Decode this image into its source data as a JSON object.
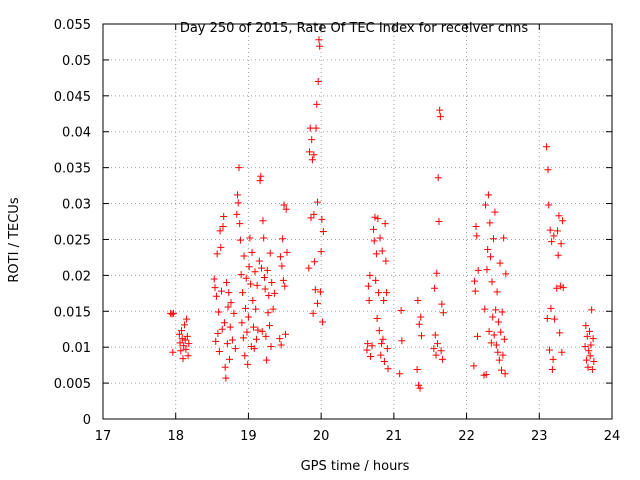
{
  "chart_data": {
    "type": "scatter",
    "title": "Day 250 of 2015, Rate Of TEC Index for receiver cnns",
    "xlabel": "GPS time / hours",
    "ylabel": "ROTI / TECUs",
    "xlim": [
      17,
      24
    ],
    "ylim": [
      0,
      0.055
    ],
    "xticks": [
      "17",
      "18",
      "19",
      "20",
      "21",
      "22",
      "23",
      "24"
    ],
    "yticks": [
      "0",
      "0.005",
      "0.01",
      "0.015",
      "0.02",
      "0.025",
      "0.03",
      "0.035",
      "0.04",
      "0.045",
      "0.05",
      "0.055"
    ],
    "grid": true,
    "marker": "+",
    "color": "#ff0000",
    "series": [
      {
        "name": "ROTI",
        "points": [
          [
            17.93,
            0.0147
          ],
          [
            17.95,
            0.0146
          ],
          [
            17.96,
            0.0093
          ],
          [
            17.97,
            0.0147
          ],
          [
            18.05,
            0.0118
          ],
          [
            18.06,
            0.0106
          ],
          [
            18.07,
            0.0095
          ],
          [
            18.08,
            0.0123
          ],
          [
            18.09,
            0.0112
          ],
          [
            18.1,
            0.0084
          ],
          [
            18.11,
            0.0102
          ],
          [
            18.12,
            0.0131
          ],
          [
            18.13,
            0.011
          ],
          [
            18.14,
            0.0097
          ],
          [
            18.15,
            0.0139
          ],
          [
            18.16,
            0.0115
          ],
          [
            18.17,
            0.0088
          ],
          [
            18.18,
            0.0105
          ],
          [
            18.53,
            0.0195
          ],
          [
            18.54,
            0.0183
          ],
          [
            18.55,
            0.0108
          ],
          [
            18.56,
            0.0171
          ],
          [
            18.57,
            0.023
          ],
          [
            18.58,
            0.0119
          ],
          [
            18.59,
            0.0149
          ],
          [
            18.6,
            0.0094
          ],
          [
            18.61,
            0.0262
          ],
          [
            18.62,
            0.0239
          ],
          [
            18.63,
            0.0178
          ],
          [
            18.64,
            0.0125
          ],
          [
            18.65,
            0.0268
          ],
          [
            18.66,
            0.0282
          ],
          [
            18.67,
            0.0134
          ],
          [
            18.68,
            0.0072
          ],
          [
            18.69,
            0.0057
          ],
          [
            18.7,
            0.019
          ],
          [
            18.71,
            0.0105
          ],
          [
            18.72,
            0.0156
          ],
          [
            18.73,
            0.0176
          ],
          [
            18.74,
            0.0083
          ],
          [
            18.75,
            0.0128
          ],
          [
            18.76,
            0.0162
          ],
          [
            18.78,
            0.011
          ],
          [
            18.8,
            0.0147
          ],
          [
            18.82,
            0.0098
          ],
          [
            18.84,
            0.0285
          ],
          [
            18.85,
            0.0312
          ],
          [
            18.86,
            0.0301
          ],
          [
            18.87,
            0.035
          ],
          [
            18.88,
            0.0272
          ],
          [
            18.89,
            0.0249
          ],
          [
            18.9,
            0.0201
          ],
          [
            18.91,
            0.0134
          ],
          [
            18.92,
            0.0176
          ],
          [
            18.93,
            0.0113
          ],
          [
            18.94,
            0.0227
          ],
          [
            18.95,
            0.0088
          ],
          [
            18.96,
            0.0154
          ],
          [
            18.97,
            0.0196
          ],
          [
            18.98,
            0.0121
          ],
          [
            18.99,
            0.0076
          ],
          [
            19.0,
            0.0142
          ],
          [
            19.01,
            0.0212
          ],
          [
            19.02,
            0.0252
          ],
          [
            19.03,
            0.0188
          ],
          [
            19.04,
            0.0101
          ],
          [
            19.05,
            0.0232
          ],
          [
            19.06,
            0.0165
          ],
          [
            19.07,
            0.0128
          ],
          [
            19.08,
            0.0098
          ],
          [
            19.09,
            0.0205
          ],
          [
            19.1,
            0.0153
          ],
          [
            19.11,
            0.0111
          ],
          [
            19.12,
            0.0186
          ],
          [
            19.13,
            0.0124
          ],
          [
            19.15,
            0.022
          ],
          [
            19.16,
            0.0332
          ],
          [
            19.17,
            0.0338
          ],
          [
            19.18,
            0.021
          ],
          [
            19.19,
            0.0122
          ],
          [
            19.2,
            0.0276
          ],
          [
            19.21,
            0.0252
          ],
          [
            19.22,
            0.0197
          ],
          [
            19.23,
            0.0181
          ],
          [
            19.24,
            0.0115
          ],
          [
            19.25,
            0.0082
          ],
          [
            19.26,
            0.0207
          ],
          [
            19.27,
            0.0148
          ],
          [
            19.28,
            0.0172
          ],
          [
            19.29,
            0.013
          ],
          [
            19.3,
            0.0231
          ],
          [
            19.31,
            0.0101
          ],
          [
            19.32,
            0.019
          ],
          [
            19.34,
            0.0153
          ],
          [
            19.36,
            0.0175
          ],
          [
            19.43,
            0.0112
          ],
          [
            19.44,
            0.0226
          ],
          [
            19.45,
            0.0103
          ],
          [
            19.46,
            0.0213
          ],
          [
            19.47,
            0.0251
          ],
          [
            19.48,
            0.0193
          ],
          [
            19.49,
            0.0298
          ],
          [
            19.5,
            0.0185
          ],
          [
            19.51,
            0.0118
          ],
          [
            19.52,
            0.0292
          ],
          [
            19.53,
            0.0232
          ],
          [
            19.83,
            0.021
          ],
          [
            19.84,
            0.0372
          ],
          [
            19.85,
            0.0405
          ],
          [
            19.86,
            0.028
          ],
          [
            19.87,
            0.0389
          ],
          [
            19.88,
            0.0361
          ],
          [
            19.89,
            0.0147
          ],
          [
            19.9,
            0.0285
          ],
          [
            19.91,
            0.0219
          ],
          [
            19.92,
            0.018
          ],
          [
            19.93,
            0.0405
          ],
          [
            19.94,
            0.0438
          ],
          [
            19.95,
            0.0302
          ],
          [
            19.96,
            0.047
          ],
          [
            19.97,
            0.0528
          ],
          [
            19.98,
            0.0519
          ],
          [
            19.99,
            0.0177
          ],
          [
            20.0,
            0.0233
          ],
          [
            20.01,
            0.0278
          ],
          [
            20.02,
            0.0135
          ],
          [
            20.03,
            0.0261
          ],
          [
            19.9,
            0.0368
          ],
          [
            19.95,
            0.0161
          ],
          [
            20.63,
            0.0096
          ],
          [
            20.64,
            0.0105
          ],
          [
            20.65,
            0.0185
          ],
          [
            20.66,
            0.0165
          ],
          [
            20.67,
            0.02
          ],
          [
            20.68,
            0.0087
          ],
          [
            20.7,
            0.0102
          ],
          [
            20.72,
            0.0264
          ],
          [
            20.73,
            0.0248
          ],
          [
            20.74,
            0.0281
          ],
          [
            20.75,
            0.0193
          ],
          [
            20.76,
            0.023
          ],
          [
            20.77,
            0.014
          ],
          [
            20.78,
            0.0279
          ],
          [
            20.79,
            0.0176
          ],
          [
            20.8,
            0.0123
          ],
          [
            20.81,
            0.0252
          ],
          [
            20.82,
            0.0089
          ],
          [
            20.83,
            0.0105
          ],
          [
            20.84,
            0.0234
          ],
          [
            20.85,
            0.0111
          ],
          [
            20.86,
            0.0165
          ],
          [
            20.87,
            0.008
          ],
          [
            20.88,
            0.0272
          ],
          [
            20.89,
            0.022
          ],
          [
            20.9,
            0.0176
          ],
          [
            20.91,
            0.0098
          ],
          [
            20.92,
            0.007
          ],
          [
            21.08,
            0.0063
          ],
          [
            21.1,
            0.0151
          ],
          [
            21.11,
            0.0109
          ],
          [
            21.32,
            0.0069
          ],
          [
            21.33,
            0.0165
          ],
          [
            21.34,
            0.0047
          ],
          [
            21.35,
            0.0132
          ],
          [
            21.36,
            0.0043
          ],
          [
            21.37,
            0.0142
          ],
          [
            21.38,
            0.0116
          ],
          [
            21.55,
            0.0098
          ],
          [
            21.56,
            0.0182
          ],
          [
            21.57,
            0.0117
          ],
          [
            21.58,
            0.0089
          ],
          [
            21.59,
            0.0203
          ],
          [
            21.6,
            0.0105
          ],
          [
            21.61,
            0.0336
          ],
          [
            21.62,
            0.0275
          ],
          [
            21.63,
            0.043
          ],
          [
            21.64,
            0.0421
          ],
          [
            21.65,
            0.0095
          ],
          [
            21.66,
            0.016
          ],
          [
            21.67,
            0.0083
          ],
          [
            21.68,
            0.0148
          ],
          [
            22.1,
            0.0074
          ],
          [
            22.11,
            0.0192
          ],
          [
            22.12,
            0.0178
          ],
          [
            22.13,
            0.0268
          ],
          [
            22.14,
            0.0255
          ],
          [
            22.15,
            0.0115
          ],
          [
            22.16,
            0.0207
          ],
          [
            22.24,
            0.0061
          ],
          [
            22.25,
            0.0153
          ],
          [
            22.26,
            0.0298
          ],
          [
            22.27,
            0.0062
          ],
          [
            22.28,
            0.0208
          ],
          [
            22.29,
            0.0236
          ],
          [
            22.3,
            0.0312
          ],
          [
            22.31,
            0.0122
          ],
          [
            22.32,
            0.0273
          ],
          [
            22.33,
            0.0226
          ],
          [
            22.34,
            0.0106
          ],
          [
            22.35,
            0.0191
          ],
          [
            22.36,
            0.0142
          ],
          [
            22.37,
            0.0251
          ],
          [
            22.38,
            0.0117
          ],
          [
            22.39,
            0.0288
          ],
          [
            22.4,
            0.0152
          ],
          [
            22.41,
            0.0103
          ],
          [
            22.42,
            0.0177
          ],
          [
            22.43,
            0.0093
          ],
          [
            22.44,
            0.0135
          ],
          [
            22.45,
            0.0082
          ],
          [
            22.46,
            0.0217
          ],
          [
            22.47,
            0.0121
          ],
          [
            22.48,
            0.0068
          ],
          [
            22.49,
            0.0149
          ],
          [
            22.5,
            0.0089
          ],
          [
            22.51,
            0.0252
          ],
          [
            22.52,
            0.0111
          ],
          [
            22.53,
            0.0063
          ],
          [
            22.54,
            0.0202
          ],
          [
            23.1,
            0.0379
          ],
          [
            23.11,
            0.014
          ],
          [
            23.12,
            0.0347
          ],
          [
            23.13,
            0.0298
          ],
          [
            23.14,
            0.0096
          ],
          [
            23.15,
            0.0263
          ],
          [
            23.16,
            0.0154
          ],
          [
            23.17,
            0.0247
          ],
          [
            23.18,
            0.0069
          ],
          [
            23.19,
            0.0083
          ],
          [
            23.2,
            0.0255
          ],
          [
            23.21,
            0.0139
          ],
          [
            23.24,
            0.0182
          ],
          [
            23.25,
            0.0262
          ],
          [
            23.26,
            0.0228
          ],
          [
            23.27,
            0.0283
          ],
          [
            23.28,
            0.012
          ],
          [
            23.29,
            0.0185
          ],
          [
            23.3,
            0.0244
          ],
          [
            23.31,
            0.0093
          ],
          [
            23.32,
            0.0276
          ],
          [
            23.33,
            0.0183
          ],
          [
            23.63,
            0.0101
          ],
          [
            23.64,
            0.013
          ],
          [
            23.65,
            0.0082
          ],
          [
            23.66,
            0.0115
          ],
          [
            23.67,
            0.0072
          ],
          [
            23.68,
            0.0095
          ],
          [
            23.69,
            0.0122
          ],
          [
            23.7,
            0.0088
          ],
          [
            23.71,
            0.0103
          ],
          [
            23.72,
            0.0152
          ],
          [
            23.73,
            0.0069
          ],
          [
            23.74,
            0.0112
          ],
          [
            23.75,
            0.008
          ]
        ]
      }
    ]
  }
}
